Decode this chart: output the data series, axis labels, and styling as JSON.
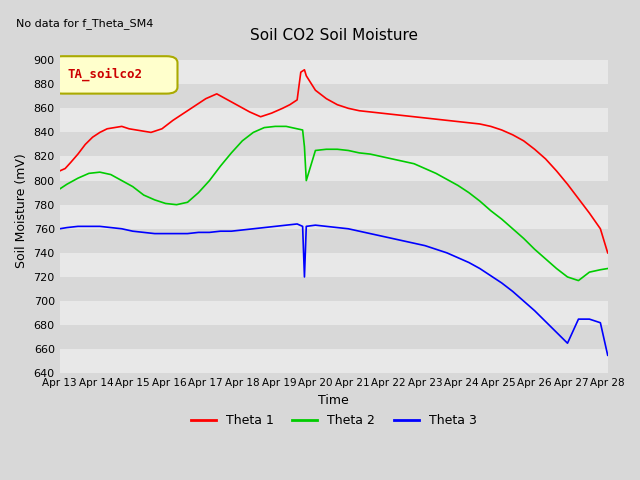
{
  "title": "Soil CO2 Soil Moisture",
  "xlabel": "Time",
  "ylabel": "Soil Moisture (mV)",
  "ylim": [
    640,
    910
  ],
  "yticks": [
    640,
    660,
    680,
    700,
    720,
    740,
    760,
    780,
    800,
    820,
    840,
    860,
    880,
    900
  ],
  "no_data_text": "No data for f_Theta_SM4",
  "legend_box_text": "TA_soilco2",
  "theta1_color": "#ff0000",
  "theta2_color": "#00cc00",
  "theta3_color": "#0000ff",
  "x_labels": [
    "Apr 13",
    "Apr 14",
    "Apr 15",
    "Apr 16",
    "Apr 17",
    "Apr 18",
    "Apr 19",
    "Apr 20",
    "Apr 21",
    "Apr 22",
    "Apr 23",
    "Apr 24",
    "Apr 25",
    "Apr 26",
    "Apr 27",
    "Apr 28"
  ],
  "theta1_x": [
    0.0,
    0.15,
    0.3,
    0.5,
    0.7,
    0.9,
    1.1,
    1.3,
    1.5,
    1.7,
    1.9,
    2.1,
    2.3,
    2.5,
    2.8,
    3.1,
    3.4,
    3.7,
    4.0,
    4.3,
    4.6,
    4.9,
    5.2,
    5.5,
    5.8,
    6.1,
    6.3,
    6.5,
    6.6,
    6.65,
    6.7,
    6.75,
    7.0,
    7.3,
    7.6,
    7.9,
    8.2,
    8.5,
    8.8,
    9.1,
    9.4,
    9.7,
    10.0,
    10.3,
    10.6,
    10.9,
    11.2,
    11.5,
    11.8,
    12.1,
    12.4,
    12.7,
    13.0,
    13.3,
    13.6,
    13.9,
    14.2,
    14.5,
    14.8,
    15.0
  ],
  "theta1_y": [
    808,
    810,
    815,
    822,
    830,
    836,
    840,
    843,
    844,
    845,
    843,
    842,
    841,
    840,
    843,
    850,
    856,
    862,
    868,
    872,
    867,
    862,
    857,
    853,
    856,
    860,
    863,
    867,
    890,
    891,
    892,
    887,
    875,
    868,
    863,
    860,
    858,
    857,
    856,
    855,
    854,
    853,
    852,
    851,
    850,
    849,
    848,
    847,
    845,
    842,
    838,
    833,
    826,
    818,
    808,
    797,
    785,
    773,
    760,
    740
  ],
  "theta2_x": [
    0.0,
    0.2,
    0.5,
    0.8,
    1.1,
    1.4,
    1.7,
    2.0,
    2.3,
    2.6,
    2.9,
    3.2,
    3.5,
    3.8,
    4.1,
    4.4,
    4.7,
    5.0,
    5.3,
    5.6,
    5.9,
    6.2,
    6.5,
    6.65,
    6.7,
    6.75,
    7.0,
    7.3,
    7.6,
    7.9,
    8.2,
    8.5,
    8.8,
    9.1,
    9.4,
    9.7,
    10.0,
    10.3,
    10.6,
    10.9,
    11.2,
    11.5,
    11.8,
    12.1,
    12.4,
    12.7,
    13.0,
    13.3,
    13.6,
    13.9,
    14.2,
    14.5,
    14.8,
    15.0
  ],
  "theta2_y": [
    793,
    797,
    802,
    806,
    807,
    805,
    800,
    795,
    788,
    784,
    781,
    780,
    782,
    790,
    800,
    812,
    823,
    833,
    840,
    844,
    845,
    845,
    843,
    842,
    828,
    800,
    825,
    826,
    826,
    825,
    823,
    822,
    820,
    818,
    816,
    814,
    810,
    806,
    801,
    796,
    790,
    783,
    775,
    768,
    760,
    752,
    743,
    735,
    727,
    720,
    717,
    724,
    726,
    727
  ],
  "theta3_x": [
    0.0,
    0.2,
    0.5,
    0.8,
    1.1,
    1.4,
    1.7,
    2.0,
    2.3,
    2.6,
    2.9,
    3.2,
    3.5,
    3.8,
    4.1,
    4.4,
    4.7,
    5.0,
    5.3,
    5.6,
    5.9,
    6.2,
    6.5,
    6.65,
    6.7,
    6.75,
    7.0,
    7.3,
    7.6,
    7.9,
    8.2,
    8.5,
    8.8,
    9.1,
    9.4,
    9.7,
    10.0,
    10.3,
    10.6,
    10.9,
    11.2,
    11.5,
    11.8,
    12.1,
    12.4,
    12.7,
    13.0,
    13.3,
    13.6,
    13.9,
    14.2,
    14.5,
    14.8,
    15.0
  ],
  "theta3_y": [
    760,
    761,
    762,
    762,
    762,
    761,
    760,
    758,
    757,
    756,
    756,
    756,
    756,
    757,
    757,
    758,
    758,
    759,
    760,
    761,
    762,
    763,
    764,
    762,
    720,
    762,
    763,
    762,
    761,
    760,
    758,
    756,
    754,
    752,
    750,
    748,
    746,
    743,
    740,
    736,
    732,
    727,
    721,
    715,
    708,
    700,
    692,
    683,
    674,
    665,
    685,
    685,
    682,
    655
  ]
}
